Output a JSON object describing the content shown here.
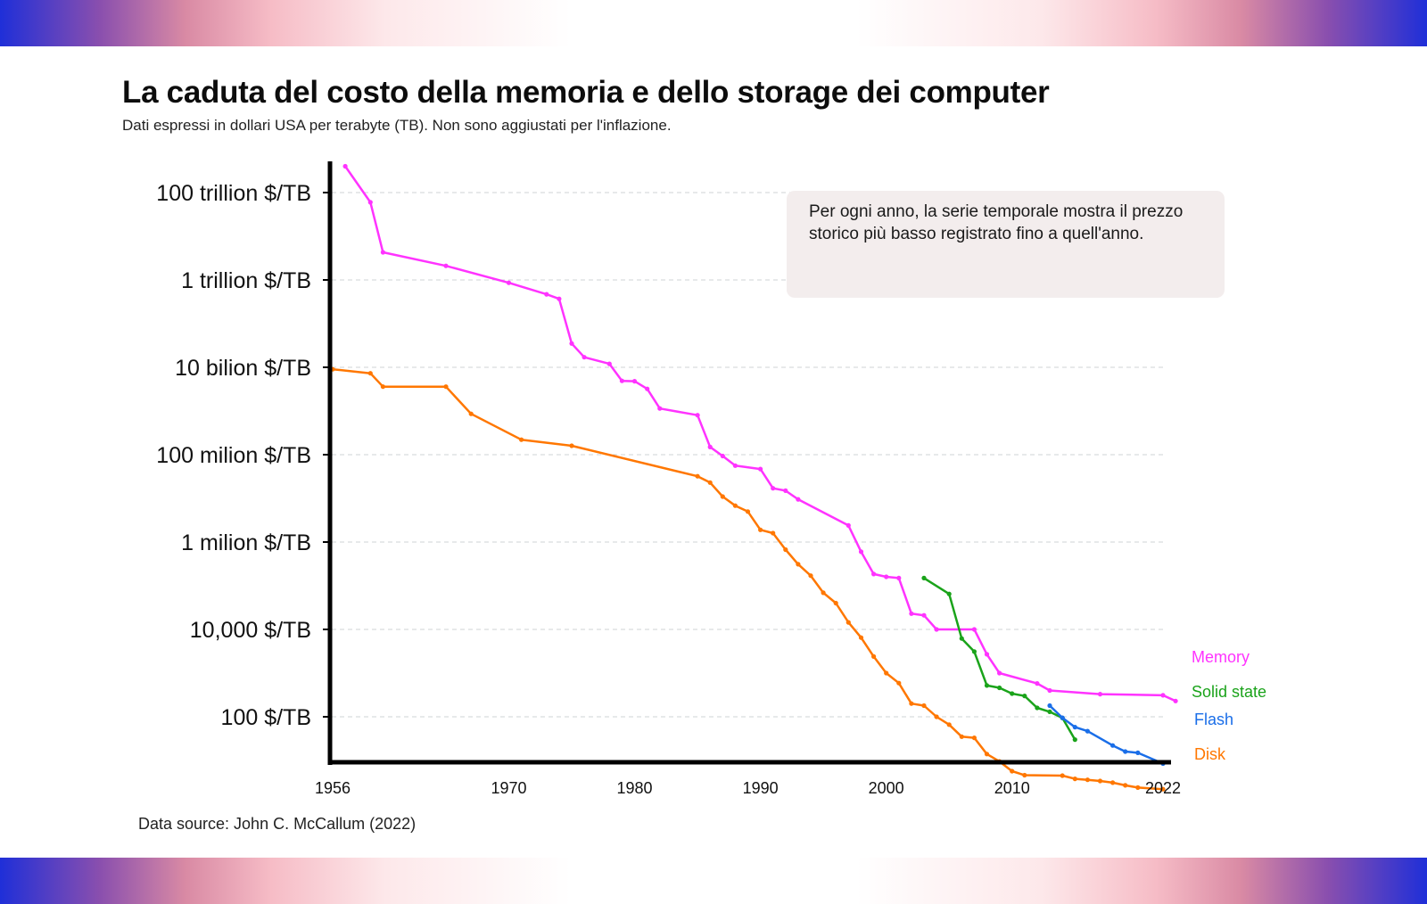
{
  "header": {
    "title": "La caduta del costo della memoria e dello storage dei computer",
    "subtitle": "Dati espressi in dollari USA per terabyte (TB). Non sono aggiustati per l'inflazione."
  },
  "note": "Per ogni anno, la serie temporale mostra il prezzo storico più basso registrato fino a quell'anno.",
  "footer": {
    "source": "Data source: John C. McCallum (2022)"
  },
  "chart_data": {
    "type": "line",
    "title": "La caduta del costo della memoria e dello storage dei computer",
    "y_scale": "log10",
    "xlim": [
      1955.5,
      2023
    ],
    "ylim": [
      3,
      1000000000000000
    ],
    "grid": true,
    "legend": "labels at right end of lines",
    "y_ticks": [
      {
        "value": 100000000000000,
        "label": "100 trillion $/TB"
      },
      {
        "value": 1000000000000,
        "label": "1 trillion $/TB"
      },
      {
        "value": 10000000000,
        "label": "10 bilion $/TB"
      },
      {
        "value": 100000000,
        "label": "100 milion $/TB"
      },
      {
        "value": 1000000,
        "label": "1 milion $/TB"
      },
      {
        "value": 10000,
        "label": "10,000 $/TB"
      },
      {
        "value": 100,
        "label": "100 $/TB"
      }
    ],
    "x_ticks": [
      {
        "value": 1956,
        "label": "1956"
      },
      {
        "value": 1970,
        "label": "1970"
      },
      {
        "value": 1980,
        "label": "1980"
      },
      {
        "value": 1990,
        "label": "1990"
      },
      {
        "value": 2000,
        "label": "2000"
      },
      {
        "value": 2010,
        "label": "2010"
      },
      {
        "value": 2022,
        "label": "2022"
      }
    ],
    "series": [
      {
        "name": "Memory",
        "color": "#ff33ff",
        "points": [
          [
            1957,
            400000000000000
          ],
          [
            1959,
            60000000000000
          ],
          [
            1960,
            4300000000000
          ],
          [
            1965,
            2100000000000
          ],
          [
            1970,
            860000000000
          ],
          [
            1973,
            470000000000
          ],
          [
            1974,
            370000000000
          ],
          [
            1975,
            35000000000
          ],
          [
            1976,
            17000000000
          ],
          [
            1978,
            12000000000
          ],
          [
            1979,
            4900000000
          ],
          [
            1980,
            4800000000
          ],
          [
            1981,
            3200000000
          ],
          [
            1982,
            1140000000
          ],
          [
            1985,
            800000000
          ],
          [
            1986,
            150000000
          ],
          [
            1987,
            93000000
          ],
          [
            1988,
            56000000
          ],
          [
            1990,
            47000000
          ],
          [
            1991,
            17000000
          ],
          [
            1992,
            15000000
          ],
          [
            1993,
            9500000
          ],
          [
            1997,
            2400000
          ],
          [
            1998,
            600000
          ],
          [
            1999,
            185000
          ],
          [
            2000,
            160000
          ],
          [
            2001,
            150000
          ],
          [
            2002,
            23000
          ],
          [
            2003,
            21000
          ],
          [
            2004,
            10000
          ],
          [
            2007,
            10000
          ],
          [
            2008,
            2700
          ],
          [
            2009,
            1000
          ],
          [
            2012,
            580
          ],
          [
            2013,
            400
          ],
          [
            2017,
            330
          ],
          [
            2022,
            310
          ],
          [
            2023,
            230
          ]
        ]
      },
      {
        "name": "Disk",
        "color": "#ff7700",
        "points": [
          [
            1956,
            9000000000
          ],
          [
            1959,
            7300000000
          ],
          [
            1960,
            3600000000
          ],
          [
            1965,
            3600000000
          ],
          [
            1967,
            860000000
          ],
          [
            1971,
            220000000
          ],
          [
            1975,
            160000000
          ],
          [
            1985,
            32000000
          ],
          [
            1986,
            23000000
          ],
          [
            1987,
            11000000
          ],
          [
            1988,
            6800000
          ],
          [
            1989,
            5000000
          ],
          [
            1990,
            1900000
          ],
          [
            1991,
            1600000
          ],
          [
            1992,
            670000
          ],
          [
            1993,
            310000
          ],
          [
            1994,
            170000
          ],
          [
            1995,
            69000
          ],
          [
            1996,
            40000
          ],
          [
            1997,
            14500
          ],
          [
            1998,
            6500
          ],
          [
            1999,
            2400
          ],
          [
            2000,
            1000
          ],
          [
            2001,
            590
          ],
          [
            2002,
            200
          ],
          [
            2003,
            180
          ],
          [
            2004,
            100
          ],
          [
            2005,
            66
          ],
          [
            2006,
            35
          ],
          [
            2007,
            33
          ],
          [
            2008,
            14
          ],
          [
            2009,
            9.5
          ],
          [
            2010,
            5.7
          ],
          [
            2011,
            4.6
          ],
          [
            2014,
            4.5
          ],
          [
            2015,
            3.8
          ],
          [
            2016,
            3.6
          ],
          [
            2017,
            3.4
          ],
          [
            2018,
            3.1
          ],
          [
            2019,
            2.7
          ],
          [
            2020,
            2.4
          ],
          [
            2022,
            2.2
          ]
        ]
      },
      {
        "name": "Solid state",
        "color": "#1aa31a",
        "points": [
          [
            2003,
            150000
          ],
          [
            2005,
            65000
          ],
          [
            2006,
            6200
          ],
          [
            2007,
            3100
          ],
          [
            2008,
            520
          ],
          [
            2009,
            460
          ],
          [
            2010,
            340
          ],
          [
            2011,
            300
          ],
          [
            2012,
            160
          ],
          [
            2013,
            130
          ],
          [
            2014,
            94
          ],
          [
            2015,
            30
          ]
        ]
      },
      {
        "name": "Flash",
        "color": "#1a6ee8",
        "points": [
          [
            2013,
            180
          ],
          [
            2014,
            95
          ],
          [
            2015,
            58
          ],
          [
            2016,
            47
          ],
          [
            2018,
            22
          ],
          [
            2019,
            16
          ],
          [
            2020,
            15
          ],
          [
            2022,
            8.5
          ]
        ]
      }
    ]
  }
}
